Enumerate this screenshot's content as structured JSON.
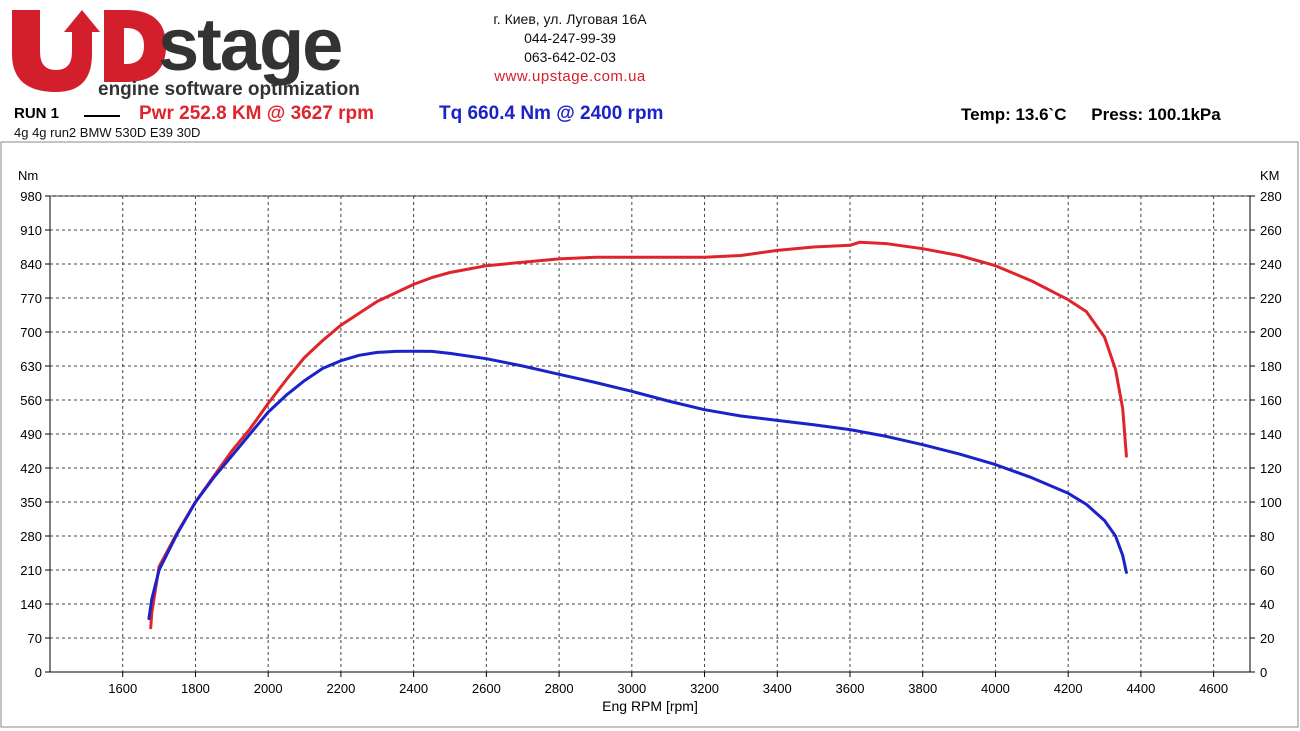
{
  "header": {
    "brand": "stage",
    "tagline": "engine software optimization",
    "address": "г. Киев, ул. Луговая 16А",
    "phone1": "044-247-99-39",
    "phone2": "063-642-02-03",
    "website": "www.upstage.com.ua",
    "colors": {
      "brand_red": "#d31f2b",
      "brand_dark": "#333333"
    }
  },
  "run": {
    "label": "RUN 1",
    "power_summary": "Pwr  252.8 KM @ 3627 rpm",
    "torque_summary": "Tq 660.4 Nm @ 2400 rpm",
    "temp": "Temp: 13.6`C",
    "press": "Press: 100.1kPa",
    "description": "4g 4g run2 BMW 530D E39 30D"
  },
  "chart_data": {
    "type": "line",
    "xlabel": "Eng RPM [rpm]",
    "ylabel_left": "Nm",
    "ylabel_right": "KM",
    "xlim": [
      1400,
      4700
    ],
    "ylim_left": [
      0,
      980
    ],
    "ylim_right": [
      0,
      280
    ],
    "x_ticks": [
      1600,
      1800,
      2000,
      2200,
      2400,
      2600,
      2800,
      3000,
      3200,
      3400,
      3600,
      3800,
      4000,
      4200,
      4400,
      4600
    ],
    "y_ticks_left": [
      0,
      70,
      140,
      210,
      280,
      350,
      420,
      490,
      560,
      630,
      700,
      770,
      840,
      910,
      980
    ],
    "y_ticks_right": [
      0,
      20,
      40,
      60,
      80,
      100,
      120,
      140,
      160,
      180,
      200,
      220,
      240,
      260,
      280
    ],
    "grid": true,
    "series": [
      {
        "name": "Pwr",
        "axis": "right",
        "color": "#e0242b",
        "points": [
          [
            1677,
            26
          ],
          [
            1680,
            35
          ],
          [
            1700,
            62
          ],
          [
            1750,
            82
          ],
          [
            1800,
            100
          ],
          [
            1850,
            115
          ],
          [
            1900,
            130
          ],
          [
            1950,
            143
          ],
          [
            2000,
            158
          ],
          [
            2050,
            172
          ],
          [
            2100,
            185
          ],
          [
            2150,
            195
          ],
          [
            2200,
            204
          ],
          [
            2250,
            211
          ],
          [
            2300,
            218
          ],
          [
            2350,
            223
          ],
          [
            2400,
            228
          ],
          [
            2450,
            232
          ],
          [
            2500,
            235
          ],
          [
            2550,
            237
          ],
          [
            2600,
            239
          ],
          [
            2700,
            241
          ],
          [
            2800,
            243
          ],
          [
            2900,
            244
          ],
          [
            3000,
            244
          ],
          [
            3100,
            244
          ],
          [
            3200,
            244
          ],
          [
            3300,
            245
          ],
          [
            3400,
            248
          ],
          [
            3500,
            250
          ],
          [
            3600,
            251
          ],
          [
            3627,
            252.8
          ],
          [
            3700,
            252
          ],
          [
            3800,
            249
          ],
          [
            3900,
            245
          ],
          [
            4000,
            239
          ],
          [
            4100,
            230
          ],
          [
            4200,
            219
          ],
          [
            4250,
            212
          ],
          [
            4300,
            197
          ],
          [
            4330,
            178
          ],
          [
            4350,
            155
          ],
          [
            4360,
            127
          ]
        ]
      },
      {
        "name": "Tq",
        "axis": "left",
        "color": "#1a22c9",
        "points": [
          [
            1672,
            110
          ],
          [
            1680,
            150
          ],
          [
            1700,
            210
          ],
          [
            1750,
            285
          ],
          [
            1800,
            350
          ],
          [
            1850,
            400
          ],
          [
            1900,
            445
          ],
          [
            1950,
            490
          ],
          [
            2000,
            535
          ],
          [
            2050,
            570
          ],
          [
            2100,
            600
          ],
          [
            2150,
            625
          ],
          [
            2200,
            641
          ],
          [
            2250,
            652
          ],
          [
            2300,
            658
          ],
          [
            2350,
            660
          ],
          [
            2400,
            660.4
          ],
          [
            2450,
            660
          ],
          [
            2500,
            656
          ],
          [
            2600,
            645
          ],
          [
            2700,
            630
          ],
          [
            2800,
            613
          ],
          [
            2900,
            596
          ],
          [
            3000,
            578
          ],
          [
            3100,
            558
          ],
          [
            3200,
            540
          ],
          [
            3300,
            527
          ],
          [
            3400,
            518
          ],
          [
            3500,
            509
          ],
          [
            3600,
            499
          ],
          [
            3700,
            485
          ],
          [
            3800,
            468
          ],
          [
            3900,
            449
          ],
          [
            4000,
            427
          ],
          [
            4100,
            400
          ],
          [
            4200,
            368
          ],
          [
            4250,
            345
          ],
          [
            4300,
            312
          ],
          [
            4330,
            280
          ],
          [
            4350,
            240
          ],
          [
            4360,
            205
          ]
        ]
      }
    ]
  }
}
